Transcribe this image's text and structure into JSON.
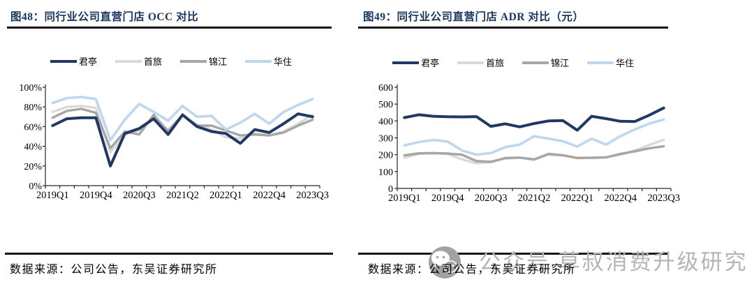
{
  "panels": [
    {
      "title": "图48：同行业公司直营门店 OCC 对比",
      "source": "数据来源：公司公告，东吴证券研究所"
    },
    {
      "title": "图49：同行业公司直营门店 ADR 对比（元）",
      "source": "数据来源：公司公告，东吴证券研究所"
    }
  ],
  "watermark": {
    "icon": "wechat-icon",
    "text": "公众号 草叔消费升级研究"
  },
  "colors": {
    "title_navy": "#17365d",
    "junting": "#1f3864",
    "shoulv": "#d9d9d9",
    "jinjiang": "#a6a6a6",
    "huazhu": "#bdd7ee",
    "rule": "#161616",
    "axis": "#262626",
    "watermark_gray": "#b4b4b4"
  },
  "chart_data": [
    {
      "type": "line",
      "title": "图48：同行业公司直营门店 OCC 对比",
      "categories": [
        "2019Q1",
        "2019Q2",
        "2019Q3",
        "2019Q4",
        "2020Q1",
        "2020Q2",
        "2020Q3",
        "2020Q4",
        "2021Q1",
        "2021Q2",
        "2021Q3",
        "2021Q4",
        "2022Q1",
        "2022Q2",
        "2022Q3",
        "2022Q4",
        "2023Q1",
        "2023Q2",
        "2023Q3"
      ],
      "x_labels": [
        "2019Q1",
        "2019Q4",
        "2020Q3",
        "2021Q2",
        "2022Q1",
        "2022Q4",
        "2023Q3"
      ],
      "x_label_indices": [
        0,
        3,
        6,
        9,
        12,
        15,
        18
      ],
      "y_ticks": [
        "0%",
        "20%",
        "40%",
        "60%",
        "80%",
        "100%"
      ],
      "ylim": [
        0,
        100
      ],
      "grid": false,
      "legend_position": "top",
      "series": [
        {
          "name": "君亭",
          "color": "#1f3864",
          "values": [
            61,
            68,
            69,
            69,
            20,
            53,
            58,
            68,
            52,
            72,
            60,
            55,
            53,
            43,
            57,
            54,
            63,
            73,
            70
          ]
        },
        {
          "name": "首旅",
          "color": "#d9d9d9",
          "values": [
            75,
            80,
            81,
            79,
            34,
            52,
            56,
            68,
            57,
            71,
            62,
            57,
            49,
            48,
            53,
            51,
            55,
            63,
            72
          ]
        },
        {
          "name": "锦江",
          "color": "#a6a6a6",
          "values": [
            69,
            76,
            78,
            74,
            38,
            55,
            52,
            72,
            55,
            72,
            61,
            61,
            56,
            51,
            52,
            51,
            54,
            61,
            67
          ]
        },
        {
          "name": "华住",
          "color": "#bdd7ee",
          "values": [
            84,
            89,
            90,
            88,
            46,
            67,
            83,
            75,
            66,
            81,
            70,
            71,
            57,
            64,
            73,
            63,
            75,
            82,
            88
          ]
        }
      ]
    },
    {
      "type": "line",
      "title": "图49：同行业公司直营门店 ADR 对比（元）",
      "categories": [
        "2019Q1",
        "2019Q2",
        "2019Q3",
        "2019Q4",
        "2020Q1",
        "2020Q2",
        "2020Q3",
        "2020Q4",
        "2021Q1",
        "2021Q2",
        "2021Q3",
        "2021Q4",
        "2022Q1",
        "2022Q2",
        "2022Q3",
        "2022Q4",
        "2023Q1",
        "2023Q2",
        "2023Q3"
      ],
      "x_labels": [
        "2019Q1",
        "2019Q4",
        "2020Q3",
        "2021Q2",
        "2022Q1",
        "2022Q4",
        "2023Q3"
      ],
      "x_label_indices": [
        0,
        3,
        6,
        9,
        12,
        15,
        18
      ],
      "y_ticks": [
        "0",
        "100",
        "200",
        "300",
        "400",
        "500",
        "600"
      ],
      "ylim": [
        0,
        600
      ],
      "grid": false,
      "legend_position": "top",
      "series": [
        {
          "name": "君亭",
          "color": "#1f3864",
          "values": [
            420,
            437,
            428,
            425,
            424,
            426,
            368,
            383,
            365,
            385,
            400,
            402,
            345,
            428,
            414,
            398,
            397,
            435,
            477
          ]
        },
        {
          "name": "首旅",
          "color": "#d9d9d9",
          "values": [
            182,
            205,
            208,
            205,
            172,
            150,
            155,
            178,
            182,
            170,
            200,
            195,
            183,
            180,
            185,
            200,
            225,
            258,
            288
          ]
        },
        {
          "name": "锦江",
          "color": "#a6a6a6",
          "values": [
            196,
            208,
            210,
            207,
            200,
            162,
            158,
            180,
            183,
            172,
            205,
            197,
            180,
            182,
            184,
            205,
            220,
            238,
            250
          ]
        },
        {
          "name": "华住",
          "color": "#bdd7ee",
          "values": [
            255,
            275,
            287,
            278,
            225,
            200,
            210,
            245,
            260,
            310,
            295,
            280,
            248,
            295,
            260,
            310,
            350,
            385,
            408
          ]
        }
      ]
    }
  ]
}
